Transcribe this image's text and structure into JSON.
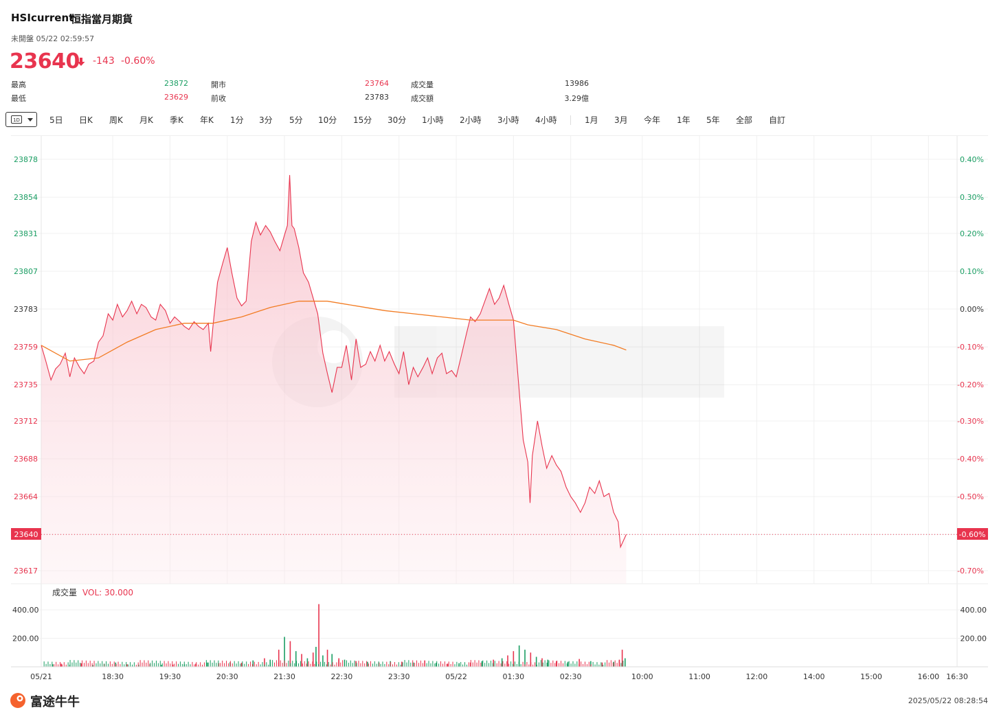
{
  "header": {
    "code": "HSIcurrent",
    "name": "恒指當月期貨",
    "status": "未開盤 05/22 02:59:57",
    "last_price": "23640",
    "change": "-143",
    "change_pct": "-0.60%"
  },
  "stats": [
    {
      "label": "最高",
      "value": "23872",
      "tone": "up"
    },
    {
      "label": "最低",
      "value": "23629",
      "tone": "down"
    },
    {
      "label": "開市",
      "value": "23764",
      "tone": "down"
    },
    {
      "label": "前收",
      "value": "23783",
      "tone": "neutral"
    },
    {
      "label": "成交量",
      "value": "13986",
      "tone": "neutral"
    },
    {
      "label": "成交額",
      "value": "3.29億",
      "tone": "neutral"
    }
  ],
  "tabs": {
    "selected": "1D",
    "items": [
      "5日",
      "日K",
      "周K",
      "月K",
      "季K",
      "年K",
      "1分",
      "3分",
      "5分",
      "10分",
      "15分",
      "30分",
      "1小時",
      "2小時",
      "3小時",
      "4小時",
      "1月",
      "3月",
      "今年",
      "1年",
      "5年",
      "全部",
      "自訂"
    ]
  },
  "colors": {
    "up": "#1a9e63",
    "down": "#e8344e",
    "price_line": "#e8344e",
    "avg_line": "#f27b22"
  },
  "volume_panel": {
    "title": "成交量",
    "indicator": "VOL: 30.000"
  },
  "footer": {
    "brand": "富途牛牛",
    "timestamp": "2025/05/22 08:28:54"
  },
  "chart_data": {
    "type": "line",
    "prev_close": 23783,
    "ylim": [
      23610,
      23890
    ],
    "y_ticks": [
      23878,
      23854,
      23831,
      23807,
      23783,
      23759,
      23735,
      23712,
      23688,
      23664,
      23640,
      23617
    ],
    "pct_ticks": [
      "0.40%",
      "0.30%",
      "0.20%",
      "0.10%",
      "0.00%",
      "-0.10%",
      "-0.20%",
      "-0.30%",
      "-0.40%",
      "-0.50%",
      "-0.60%",
      "-0.70%"
    ],
    "current_price_label": "23640",
    "current_pct_label": "-0.60%",
    "x_ticks": [
      "05/21",
      "18:30",
      "19:30",
      "20:30",
      "21:30",
      "22:30",
      "23:30",
      "05/22",
      "01:30",
      "02:30",
      "10:00",
      "11:00",
      "12:00",
      "14:00",
      "15:00",
      "16:00",
      "16:30"
    ],
    "x_tick_slots": [
      0,
      1.25,
      2.25,
      3.25,
      4.25,
      5.25,
      6.25,
      7.25,
      8.25,
      9.25,
      10.5,
      11.5,
      12.5,
      13.5,
      14.5,
      15.5,
      16
    ],
    "x_end_slot": 16,
    "price_points": [
      [
        0,
        23760
      ],
      [
        0.08,
        23750
      ],
      [
        0.17,
        23738
      ],
      [
        0.25,
        23745
      ],
      [
        0.33,
        23748
      ],
      [
        0.42,
        23755
      ],
      [
        0.5,
        23740
      ],
      [
        0.58,
        23752
      ],
      [
        0.67,
        23746
      ],
      [
        0.75,
        23742
      ],
      [
        0.83,
        23748
      ],
      [
        0.92,
        23750
      ],
      [
        1.0,
        23762
      ],
      [
        1.08,
        23766
      ],
      [
        1.17,
        23780
      ],
      [
        1.25,
        23776
      ],
      [
        1.33,
        23786
      ],
      [
        1.42,
        23778
      ],
      [
        1.5,
        23782
      ],
      [
        1.58,
        23788
      ],
      [
        1.67,
        23780
      ],
      [
        1.75,
        23786
      ],
      [
        1.83,
        23784
      ],
      [
        1.92,
        23778
      ],
      [
        2.0,
        23776
      ],
      [
        2.08,
        23786
      ],
      [
        2.17,
        23782
      ],
      [
        2.25,
        23774
      ],
      [
        2.33,
        23778
      ],
      [
        2.42,
        23775
      ],
      [
        2.5,
        23772
      ],
      [
        2.58,
        23770
      ],
      [
        2.67,
        23775
      ],
      [
        2.75,
        23772
      ],
      [
        2.83,
        23770
      ],
      [
        2.92,
        23774
      ],
      [
        2.96,
        23756
      ],
      [
        3.0,
        23772
      ],
      [
        3.08,
        23800
      ],
      [
        3.17,
        23812
      ],
      [
        3.25,
        23822
      ],
      [
        3.33,
        23806
      ],
      [
        3.42,
        23790
      ],
      [
        3.5,
        23785
      ],
      [
        3.58,
        23788
      ],
      [
        3.67,
        23826
      ],
      [
        3.75,
        23838
      ],
      [
        3.83,
        23830
      ],
      [
        3.92,
        23836
      ],
      [
        4.0,
        23832
      ],
      [
        4.08,
        23826
      ],
      [
        4.17,
        23820
      ],
      [
        4.25,
        23830
      ],
      [
        4.3,
        23836
      ],
      [
        4.34,
        23868
      ],
      [
        4.38,
        23836
      ],
      [
        4.42,
        23834
      ],
      [
        4.5,
        23822
      ],
      [
        4.58,
        23806
      ],
      [
        4.67,
        23800
      ],
      [
        4.75,
        23790
      ],
      [
        4.83,
        23780
      ],
      [
        4.92,
        23755
      ],
      [
        5.0,
        23742
      ],
      [
        5.08,
        23730
      ],
      [
        5.17,
        23746
      ],
      [
        5.25,
        23746
      ],
      [
        5.33,
        23760
      ],
      [
        5.42,
        23738
      ],
      [
        5.5,
        23764
      ],
      [
        5.58,
        23746
      ],
      [
        5.67,
        23748
      ],
      [
        5.75,
        23756
      ],
      [
        5.83,
        23750
      ],
      [
        5.92,
        23760
      ],
      [
        6.0,
        23750
      ],
      [
        6.08,
        23756
      ],
      [
        6.17,
        23748
      ],
      [
        6.25,
        23742
      ],
      [
        6.33,
        23756
      ],
      [
        6.42,
        23735
      ],
      [
        6.5,
        23746
      ],
      [
        6.58,
        23740
      ],
      [
        6.67,
        23746
      ],
      [
        6.75,
        23752
      ],
      [
        6.83,
        23742
      ],
      [
        6.92,
        23752
      ],
      [
        7.0,
        23755
      ],
      [
        7.08,
        23742
      ],
      [
        7.17,
        23744
      ],
      [
        7.25,
        23740
      ],
      [
        7.33,
        23752
      ],
      [
        7.42,
        23766
      ],
      [
        7.5,
        23778
      ],
      [
        7.58,
        23775
      ],
      [
        7.67,
        23780
      ],
      [
        7.75,
        23788
      ],
      [
        7.83,
        23796
      ],
      [
        7.92,
        23786
      ],
      [
        8.0,
        23790
      ],
      [
        8.08,
        23798
      ],
      [
        8.17,
        23786
      ],
      [
        8.25,
        23776
      ],
      [
        8.33,
        23740
      ],
      [
        8.42,
        23700
      ],
      [
        8.5,
        23686
      ],
      [
        8.54,
        23660
      ],
      [
        8.58,
        23690
      ],
      [
        8.67,
        23712
      ],
      [
        8.75,
        23696
      ],
      [
        8.83,
        23682
      ],
      [
        8.92,
        23690
      ],
      [
        9.0,
        23684
      ],
      [
        9.08,
        23680
      ],
      [
        9.17,
        23670
      ],
      [
        9.25,
        23664
      ],
      [
        9.33,
        23660
      ],
      [
        9.42,
        23654
      ],
      [
        9.5,
        23660
      ],
      [
        9.58,
        23670
      ],
      [
        9.67,
        23666
      ],
      [
        9.75,
        23674
      ],
      [
        9.83,
        23664
      ],
      [
        9.92,
        23666
      ],
      [
        10.0,
        23654
      ],
      [
        10.08,
        23648
      ],
      [
        10.12,
        23632
      ],
      [
        10.17,
        23636
      ],
      [
        10.22,
        23640
      ]
    ],
    "avg_points": [
      [
        0,
        23760
      ],
      [
        0.5,
        23750
      ],
      [
        1.0,
        23752
      ],
      [
        1.5,
        23762
      ],
      [
        2.0,
        23770
      ],
      [
        2.5,
        23774
      ],
      [
        3.0,
        23774
      ],
      [
        3.5,
        23778
      ],
      [
        4.0,
        23784
      ],
      [
        4.5,
        23788
      ],
      [
        5.0,
        23788
      ],
      [
        5.5,
        23785
      ],
      [
        6.0,
        23782
      ],
      [
        6.5,
        23780
      ],
      [
        7.0,
        23778
      ],
      [
        7.5,
        23776
      ],
      [
        8.0,
        23776
      ],
      [
        8.25,
        23776
      ],
      [
        8.5,
        23773
      ],
      [
        9.0,
        23770
      ],
      [
        9.5,
        23764
      ],
      [
        10.0,
        23760
      ],
      [
        10.22,
        23757
      ]
    ],
    "volume_ylim": [
      0,
      500
    ],
    "volume_ticks": [
      400,
      200
    ],
    "volume_tick_labels": [
      "400.00",
      "200.00"
    ],
    "volume_bars": [
      [
        0.2,
        18,
        "up"
      ],
      [
        0.35,
        22,
        "down"
      ],
      [
        0.5,
        15,
        "up"
      ],
      [
        0.7,
        25,
        "down"
      ],
      [
        0.9,
        12,
        "up"
      ],
      [
        1.1,
        20,
        "down"
      ],
      [
        1.3,
        30,
        "up"
      ],
      [
        1.5,
        18,
        "down"
      ],
      [
        1.7,
        15,
        "up"
      ],
      [
        1.9,
        20,
        "down"
      ],
      [
        2.1,
        14,
        "up"
      ],
      [
        2.3,
        16,
        "down"
      ],
      [
        2.5,
        18,
        "up"
      ],
      [
        2.7,
        22,
        "down"
      ],
      [
        2.9,
        30,
        "up"
      ],
      [
        3.1,
        26,
        "down"
      ],
      [
        3.3,
        32,
        "up"
      ],
      [
        3.5,
        28,
        "down"
      ],
      [
        3.7,
        45,
        "up"
      ],
      [
        3.9,
        60,
        "down"
      ],
      [
        4.0,
        50,
        "up"
      ],
      [
        4.15,
        120,
        "down"
      ],
      [
        4.25,
        210,
        "up"
      ],
      [
        4.35,
        180,
        "down"
      ],
      [
        4.45,
        110,
        "up"
      ],
      [
        4.55,
        90,
        "down"
      ],
      [
        4.65,
        60,
        "up"
      ],
      [
        4.75,
        100,
        "down"
      ],
      [
        4.8,
        140,
        "up"
      ],
      [
        4.85,
        440,
        "down"
      ],
      [
        4.92,
        80,
        "up"
      ],
      [
        5.0,
        120,
        "down"
      ],
      [
        5.08,
        90,
        "up"
      ],
      [
        5.2,
        60,
        "down"
      ],
      [
        5.3,
        50,
        "up"
      ],
      [
        5.5,
        40,
        "down"
      ],
      [
        5.7,
        35,
        "up"
      ],
      [
        5.9,
        30,
        "down"
      ],
      [
        6.1,
        40,
        "up"
      ],
      [
        6.3,
        36,
        "down"
      ],
      [
        6.5,
        30,
        "up"
      ],
      [
        6.7,
        45,
        "down"
      ],
      [
        6.9,
        28,
        "up"
      ],
      [
        7.1,
        22,
        "down"
      ],
      [
        7.3,
        26,
        "up"
      ],
      [
        7.5,
        30,
        "down"
      ],
      [
        7.7,
        40,
        "up"
      ],
      [
        7.9,
        50,
        "down"
      ],
      [
        8.05,
        60,
        "up"
      ],
      [
        8.15,
        80,
        "down"
      ],
      [
        8.25,
        110,
        "down"
      ],
      [
        8.35,
        150,
        "up"
      ],
      [
        8.45,
        120,
        "up"
      ],
      [
        8.55,
        100,
        "down"
      ],
      [
        8.65,
        70,
        "up"
      ],
      [
        8.75,
        60,
        "down"
      ],
      [
        8.85,
        50,
        "up"
      ],
      [
        9.0,
        40,
        "down"
      ],
      [
        9.2,
        35,
        "up"
      ],
      [
        9.4,
        55,
        "down"
      ],
      [
        9.6,
        40,
        "up"
      ],
      [
        9.8,
        30,
        "down"
      ],
      [
        10.0,
        35,
        "up"
      ],
      [
        10.1,
        50,
        "down"
      ],
      [
        10.15,
        120,
        "down"
      ],
      [
        10.2,
        60,
        "up"
      ]
    ]
  }
}
